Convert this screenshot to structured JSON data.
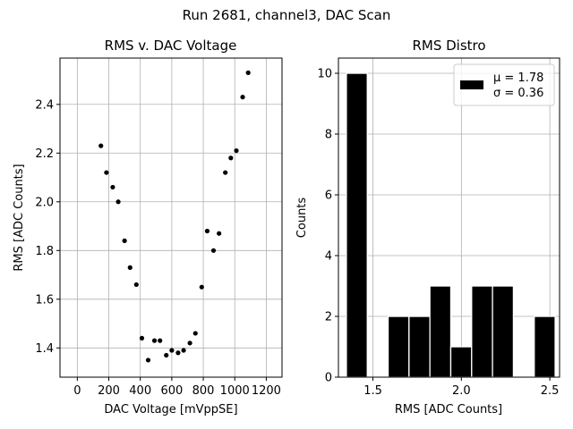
{
  "figure_title": "Run 2681, channel3, DAC Scan",
  "chart_data": [
    {
      "type": "scatter",
      "title": "RMS v. DAC Voltage",
      "xlabel": "DAC Voltage [mVppSE]",
      "ylabel": "RMS [ADC Counts]",
      "xlim": [
        -110,
        1300
      ],
      "ylim": [
        1.28,
        2.59
      ],
      "xticks": [
        0,
        200,
        400,
        600,
        800,
        1000,
        1200
      ],
      "yticks": [
        1.4,
        1.6,
        1.8,
        2.0,
        2.2,
        2.4
      ],
      "xtick_labels": [
        "0",
        "200",
        "400",
        "600",
        "800",
        "1000",
        "1200"
      ],
      "ytick_labels": [
        "1.4",
        "1.6",
        "1.8",
        "2.0",
        "2.2",
        "2.4"
      ],
      "grid": true,
      "x": [
        150,
        185,
        225,
        260,
        300,
        335,
        375,
        410,
        450,
        490,
        525,
        565,
        600,
        640,
        675,
        715,
        750,
        790,
        825,
        865,
        900,
        940,
        975,
        1010,
        1050,
        1085
      ],
      "y": [
        2.23,
        2.12,
        2.06,
        2.0,
        1.84,
        1.73,
        1.66,
        1.44,
        1.35,
        1.43,
        1.43,
        1.37,
        1.39,
        1.38,
        1.39,
        1.42,
        1.46,
        1.65,
        1.88,
        1.8,
        1.87,
        2.12,
        2.18,
        2.21,
        2.43,
        2.53
      ]
    },
    {
      "type": "bar",
      "title": "RMS Distro",
      "xlabel": "RMS [ADC Counts]",
      "ylabel": "Counts",
      "xlim": [
        1.305,
        2.555
      ],
      "ylim": [
        0,
        10.5
      ],
      "xticks": [
        1.5,
        2.0,
        2.5
      ],
      "yticks": [
        0,
        2,
        4,
        6,
        8,
        10
      ],
      "xtick_labels": [
        "1.5",
        "2.0",
        "2.5"
      ],
      "ytick_labels": [
        "0",
        "2",
        "4",
        "6",
        "8",
        "10"
      ],
      "grid": true,
      "bin_edges": [
        1.35,
        1.468,
        1.586,
        1.704,
        1.822,
        1.94,
        2.058,
        2.176,
        2.294,
        2.412,
        2.53
      ],
      "counts": [
        10,
        0,
        2,
        2,
        3,
        1,
        3,
        3,
        0,
        2
      ],
      "legend": {
        "position": "top-right",
        "lines": [
          "μ = 1.78",
          "σ = 0.36"
        ]
      }
    }
  ]
}
